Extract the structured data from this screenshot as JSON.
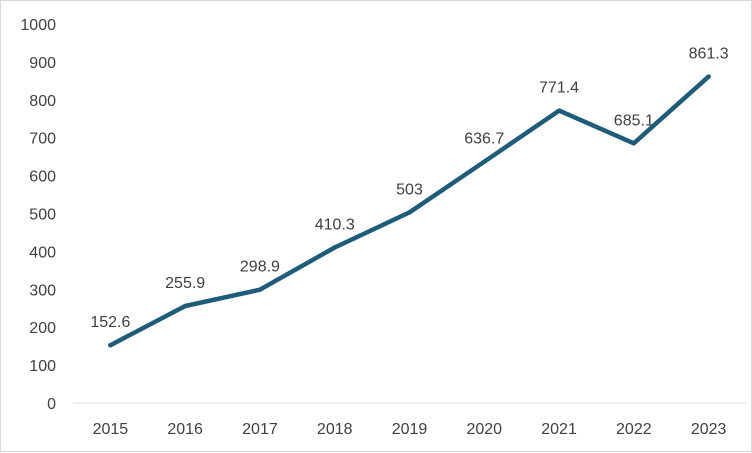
{
  "chart_data": {
    "type": "line",
    "title": "",
    "xlabel": "",
    "ylabel": "",
    "categories": [
      "2015",
      "2016",
      "2017",
      "2018",
      "2019",
      "2020",
      "2021",
      "2022",
      "2023"
    ],
    "series": [
      {
        "values": [
          152.6,
          255.9,
          298.9,
          410.3,
          503,
          636.7,
          771.4,
          685.1,
          861.3
        ],
        "data_labels": [
          "152.6",
          "255.9",
          "298.9",
          "410.3",
          "503",
          "636.7",
          "771.4",
          "685.1",
          "861.3"
        ],
        "color": "#1f5c7a"
      }
    ],
    "ylim": [
      0,
      1000
    ],
    "yticks": [
      "0",
      "100",
      "200",
      "300",
      "400",
      "500",
      "600",
      "700",
      "800",
      "900",
      "1000"
    ],
    "grid": false,
    "legend": "none"
  },
  "colors": {
    "line": "#1f5c7a",
    "text": "#404040",
    "axis": "#d9d9d9",
    "frame": "#d9d9d9"
  }
}
